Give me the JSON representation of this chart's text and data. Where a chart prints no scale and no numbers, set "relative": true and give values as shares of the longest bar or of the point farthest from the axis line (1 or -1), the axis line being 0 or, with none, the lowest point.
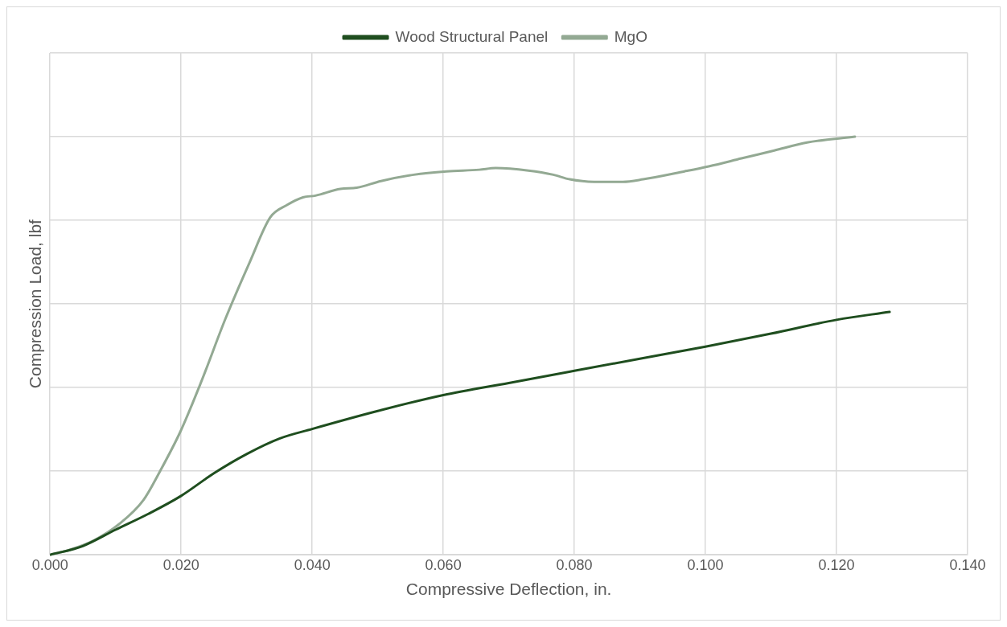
{
  "chart_data": {
    "type": "line",
    "relative": true,
    "xlabel": "Compressive Deflection, in.",
    "ylabel": "Compression Load, lbf",
    "xlim": [
      0,
      0.14
    ],
    "xticks": [
      {
        "value": 0,
        "label": "0.000"
      },
      {
        "value": 0.02,
        "label": "0.020"
      },
      {
        "value": 0.04,
        "label": "0.040"
      },
      {
        "value": 0.06,
        "label": "0.060"
      },
      {
        "value": 0.08,
        "label": "0.080"
      },
      {
        "value": 0.1,
        "label": "0.100"
      },
      {
        "value": 0.12,
        "label": "0.120"
      },
      {
        "value": 0.14,
        "label": "0.140"
      }
    ],
    "grid": true,
    "legend": "top",
    "marker": "none",
    "line_style": "solid",
    "series": [
      {
        "name": "Wood Structural Panel",
        "color": "#1f4e1f",
        "x": [
          0,
          0.005,
          0.01,
          0.015,
          0.02,
          0.025,
          0.03,
          0.035,
          0.04,
          0.05,
          0.06,
          0.07,
          0.08,
          0.09,
          0.1,
          0.11,
          0.12,
          0.1281
        ],
        "values": [
          0,
          0.021,
          0.06,
          0.098,
          0.141,
          0.195,
          0.241,
          0.278,
          0.301,
          0.344,
          0.382,
          0.411,
          0.44,
          0.469,
          0.498,
          0.529,
          0.562,
          0.581
        ]
      },
      {
        "name": "MgO",
        "color": "#93a993",
        "x": [
          0,
          0.003,
          0.00675,
          0.0105,
          0.01425,
          0.01675,
          0.0199,
          0.023,
          0.0268,
          0.0305,
          0.0336,
          0.0361,
          0.0386,
          0.0405,
          0.0443,
          0.0468,
          0.0505,
          0.0555,
          0.0605,
          0.0655,
          0.068,
          0.073,
          0.0768,
          0.0793,
          0.083,
          0.0874,
          0.0905,
          0.0968,
          0.1005,
          0.1055,
          0.1105,
          0.1155,
          0.1228
        ],
        "values": [
          0,
          0.012,
          0.035,
          0.073,
          0.131,
          0.199,
          0.295,
          0.411,
          0.566,
          0.701,
          0.807,
          0.836,
          0.855,
          0.859,
          0.875,
          0.878,
          0.894,
          0.909,
          0.917,
          0.921,
          0.925,
          0.919,
          0.909,
          0.898,
          0.892,
          0.892,
          0.898,
          0.917,
          0.929,
          0.948,
          0.967,
          0.986,
          1
        ]
      }
    ]
  }
}
